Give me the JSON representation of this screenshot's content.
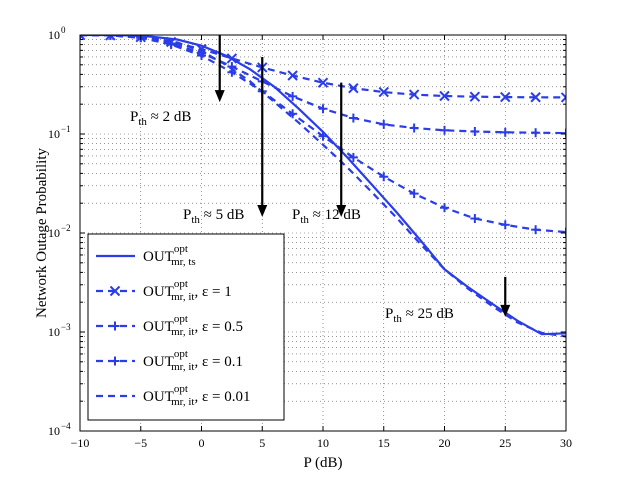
{
  "chart_data": {
    "type": "line",
    "xlabel": "P (dB)",
    "ylabel": "Network Outage Probability",
    "xlim": [
      -10,
      30
    ],
    "ylim": [
      0.0001,
      1
    ],
    "yscale": "log",
    "grid": true,
    "legend_placement": "lower-left",
    "x_ticks": [
      "−10",
      "−5",
      "0",
      "5",
      "10",
      "15",
      "20",
      "25",
      "30"
    ],
    "y_ticks": [
      {
        "base": "10",
        "exp": "0"
      },
      {
        "base": "10",
        "exp": "−1"
      },
      {
        "base": "10",
        "exp": "−2"
      },
      {
        "base": "10",
        "exp": "−3"
      },
      {
        "base": "10",
        "exp": "−4"
      }
    ],
    "color": "#2b3de8",
    "series": [
      {
        "style": "solid",
        "marker": "none",
        "legend": {
          "main": "OUT",
          "sup": "opt",
          "sub": "mr, ts",
          "suffix": ""
        },
        "x": [
          -10,
          -8,
          -6,
          -4,
          -2,
          0,
          2,
          4,
          6,
          8,
          10,
          12,
          14,
          16,
          18,
          20,
          22,
          24,
          26,
          28,
          30
        ],
        "y": [
          1.0,
          1.0,
          0.99,
          0.96,
          0.9,
          0.78,
          0.62,
          0.45,
          0.3,
          0.18,
          0.105,
          0.058,
          0.031,
          0.0165,
          0.0085,
          0.0043,
          0.0028,
          0.0019,
          0.0013,
          0.00095,
          0.00097
        ]
      },
      {
        "style": "dashed",
        "marker": "x",
        "legend": {
          "main": "OUT",
          "sup": "opt",
          "sub": "mr, it",
          "suffix": ", ε = 1"
        },
        "x": [
          -10,
          -7.5,
          -5,
          -2.5,
          0,
          2.5,
          5,
          7.5,
          10,
          12.5,
          15,
          17.5,
          20,
          22.5,
          25,
          27.5,
          30
        ],
        "y": [
          1.0,
          0.99,
          0.95,
          0.85,
          0.72,
          0.58,
          0.47,
          0.39,
          0.33,
          0.29,
          0.265,
          0.25,
          0.242,
          0.238,
          0.236,
          0.235,
          0.234
        ]
      },
      {
        "style": "dashed",
        "marker": "+",
        "legend": {
          "main": "OUT",
          "sup": "opt",
          "sub": "mr, it",
          "suffix": ", ε = 0.5"
        },
        "x": [
          -10,
          -7.5,
          -5,
          -2.5,
          0,
          2.5,
          5,
          7.5,
          10,
          12.5,
          15,
          17.5,
          20,
          22.5,
          25,
          27.5,
          30
        ],
        "y": [
          1.0,
          0.99,
          0.94,
          0.82,
          0.66,
          0.48,
          0.34,
          0.24,
          0.18,
          0.145,
          0.125,
          0.115,
          0.109,
          0.106,
          0.104,
          0.103,
          0.102
        ]
      },
      {
        "style": "dashed",
        "marker": "+",
        "legend": {
          "main": "OUT",
          "sup": "opt",
          "sub": "mr, it",
          "suffix": ", ε = 0.1"
        },
        "x": [
          -10,
          -7.5,
          -5,
          -2.5,
          0,
          2.5,
          5,
          7.5,
          10,
          12.5,
          15,
          17.5,
          20,
          22.5,
          25,
          27.5,
          30
        ],
        "y": [
          1.0,
          0.99,
          0.94,
          0.8,
          0.62,
          0.42,
          0.27,
          0.16,
          0.095,
          0.058,
          0.037,
          0.025,
          0.018,
          0.014,
          0.0121,
          0.0108,
          0.0102
        ]
      },
      {
        "style": "dashed",
        "marker": "none",
        "legend": {
          "main": "OUT",
          "sup": "opt",
          "sub": "mr, it",
          "suffix": ", ε = 0.01"
        },
        "x": [
          -10,
          -8,
          -6,
          -4,
          -2,
          0,
          2,
          4,
          6,
          8,
          10,
          12,
          14,
          16,
          18,
          20,
          22,
          24,
          26,
          28,
          30
        ],
        "y": [
          1.0,
          1.0,
          0.98,
          0.93,
          0.84,
          0.69,
          0.5,
          0.34,
          0.21,
          0.13,
          0.078,
          0.046,
          0.026,
          0.0145,
          0.0078,
          0.0043,
          0.0027,
          0.0018,
          0.00125,
          0.00098,
          0.0009
        ]
      }
    ],
    "annotations": [
      {
        "main": "P",
        "sub": "th",
        "rest": " ≈ 2 dB",
        "arrow_x": 1.5,
        "arrow_from": 1.0,
        "arrow_to": 0.21
      },
      {
        "main": "P",
        "sub": "th",
        "rest": " ≈ 5 dB",
        "arrow_x": 5,
        "arrow_from": 0.6,
        "arrow_to": 0.0145
      },
      {
        "main": "P",
        "sub": "th",
        "rest": " ≈ 12 dB",
        "arrow_x": 11.5,
        "arrow_from": 0.33,
        "arrow_to": 0.0145
      },
      {
        "main": "P",
        "sub": "th",
        "rest": " ≈ 25 dB",
        "arrow_x": 25,
        "arrow_from": 0.0036,
        "arrow_to": 0.00142
      }
    ]
  }
}
